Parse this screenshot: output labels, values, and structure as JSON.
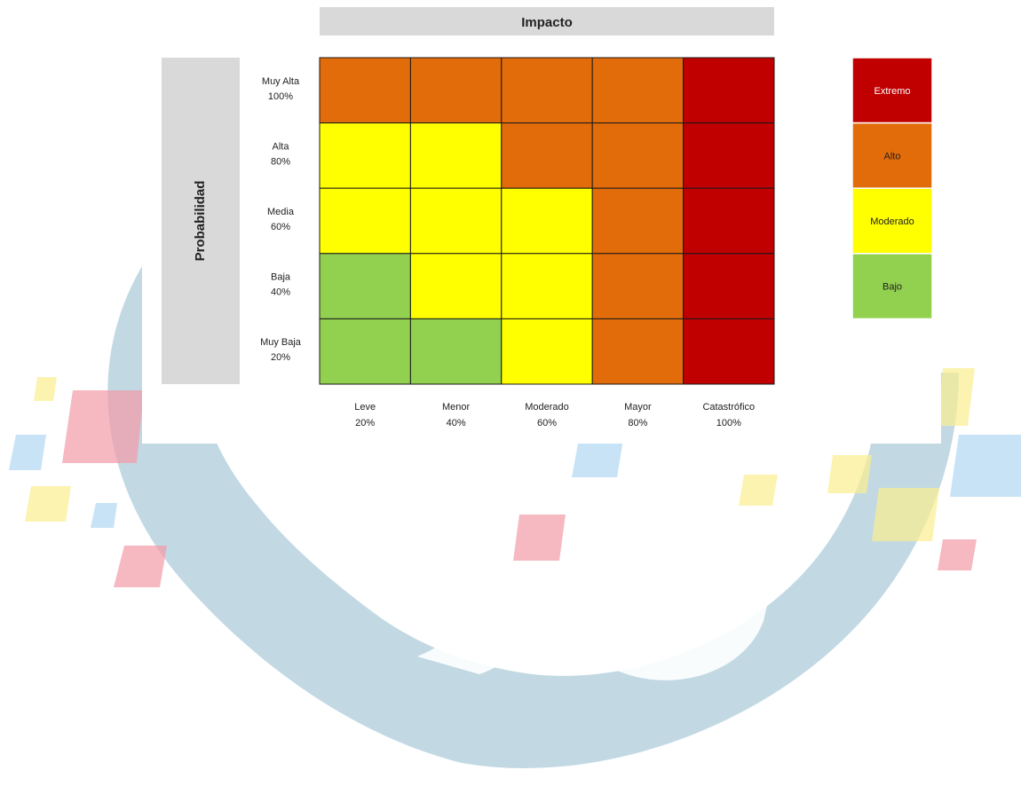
{
  "colors": {
    "extremo": "#c00000",
    "alto": "#e26b0a",
    "moderado": "#ffff00",
    "bajo": "#92d050",
    "header_bar": "#d9d9d9",
    "watermark_blue": "#b7d2df",
    "watermark_red": "#f29aa7",
    "watermark_yellow": "#fbee8e",
    "watermark_lightblue": "#b9dcf3"
  },
  "chart_data": {
    "type": "heatmap",
    "x_axis_title": "Impacto",
    "y_axis_title": "Probabilidad",
    "x_categories": [
      {
        "name": "Leve",
        "pct": "20%"
      },
      {
        "name": "Menor",
        "pct": "40%"
      },
      {
        "name": "Moderado",
        "pct": "60%"
      },
      {
        "name": "Mayor",
        "pct": "80%"
      },
      {
        "name": "Catastrófico",
        "pct": "100%"
      }
    ],
    "y_categories": [
      {
        "name": "Muy Alta",
        "pct": "100%"
      },
      {
        "name": "Alta",
        "pct": "80%"
      },
      {
        "name": "Media",
        "pct": "60%"
      },
      {
        "name": "Baja",
        "pct": "40%"
      },
      {
        "name": "Muy Baja",
        "pct": "20%"
      }
    ],
    "levels": [
      "Extremo",
      "Alto",
      "Moderado",
      "Bajo"
    ],
    "matrix": [
      [
        "Alto",
        "Alto",
        "Alto",
        "Alto",
        "Extremo"
      ],
      [
        "Moderado",
        "Moderado",
        "Alto",
        "Alto",
        "Extremo"
      ],
      [
        "Moderado",
        "Moderado",
        "Moderado",
        "Alto",
        "Extremo"
      ],
      [
        "Bajo",
        "Moderado",
        "Moderado",
        "Alto",
        "Extremo"
      ],
      [
        "Bajo",
        "Bajo",
        "Moderado",
        "Alto",
        "Extremo"
      ]
    ],
    "legend": [
      {
        "label": "Extremo",
        "level": "Extremo"
      },
      {
        "label": "Alto",
        "level": "Alto"
      },
      {
        "label": "Moderado",
        "level": "Moderado"
      },
      {
        "label": "Bajo",
        "level": "Bajo"
      }
    ]
  }
}
